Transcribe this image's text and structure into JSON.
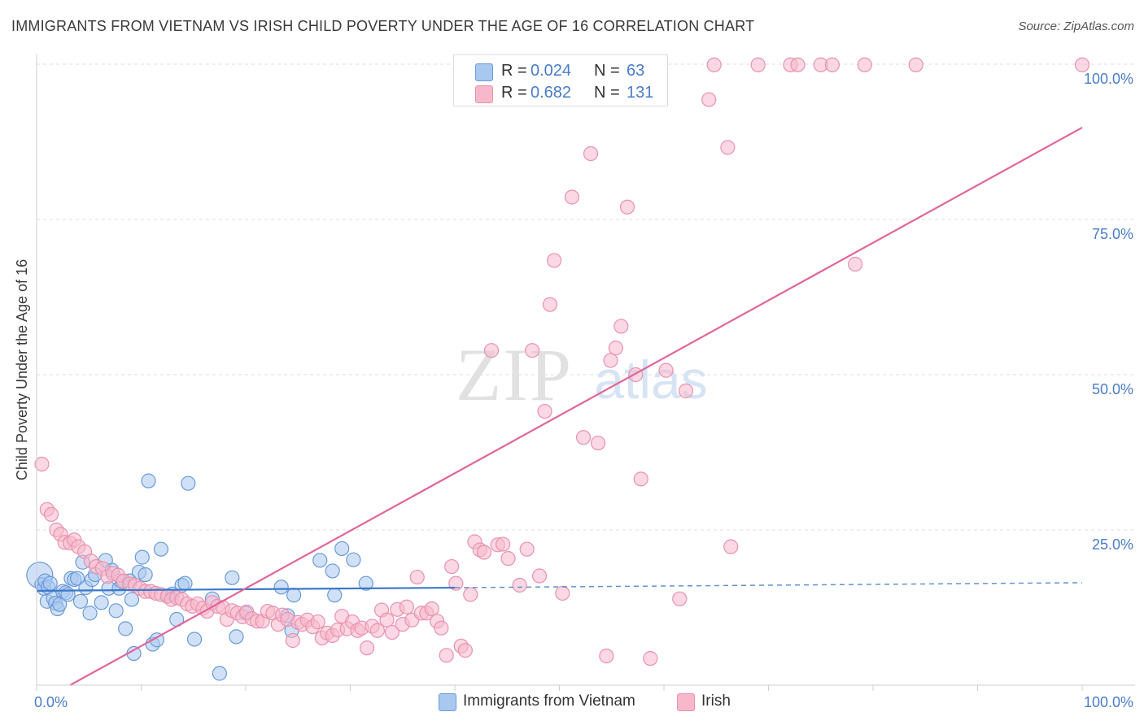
{
  "title": "IMMIGRANTS FROM VIETNAM VS IRISH CHILD POVERTY UNDER THE AGE OF 16 CORRELATION CHART",
  "source": "Source: ZipAtlas.com",
  "watermark": {
    "zip": "ZIP",
    "atlas": "atlas"
  },
  "legend": {
    "rows": [
      {
        "r_label": "R =",
        "r_value": "0.024",
        "n_label": "N =",
        "n_value": "63",
        "color": "#a9c8f0",
        "border": "#6a9ad8"
      },
      {
        "r_label": "R =",
        "r_value": "0.682",
        "n_label": "N =",
        "n_value": "131",
        "color": "#f7b8cc",
        "border": "#e892ad"
      }
    ]
  },
  "bottom_legend": [
    {
      "label": "Immigrants from Vietnam",
      "color": "#a9c8f0",
      "border": "#6a9ad8"
    },
    {
      "label": "Irish",
      "color": "#f7b8cc",
      "border": "#e892ad"
    }
  ],
  "chart_data": {
    "type": "scatter",
    "xlabel": "",
    "ylabel": "Child Poverty Under the Age of 16",
    "xlim": [
      0,
      100
    ],
    "ylim": [
      0,
      100
    ],
    "x_tick_labels": [
      "0.0%",
      "100.0%"
    ],
    "y_tick_labels": [
      "25.0%",
      "50.0%",
      "75.0%",
      "100.0%"
    ],
    "y_ticks": [
      25,
      50,
      75,
      100
    ],
    "grid": true,
    "colors": {
      "blue_fill": "#a9c8f0",
      "blue_stroke": "#6a9ad8",
      "blue_line": "#3a78c9",
      "pink_fill": "#f7b8cc",
      "pink_stroke": "#e892ad",
      "pink_line": "#e0669a"
    },
    "series": [
      {
        "name": "Immigrants from Vietnam",
        "points": [
          [
            0.3,
            17.7
          ],
          [
            0.5,
            16.2
          ],
          [
            0.7,
            15.6
          ],
          [
            0.8,
            16.8
          ],
          [
            1.0,
            13.5
          ],
          [
            1.1,
            15.8
          ],
          [
            1.3,
            16.4
          ],
          [
            1.6,
            14.0
          ],
          [
            1.8,
            13.2
          ],
          [
            2.0,
            12.3
          ],
          [
            2.2,
            13.0
          ],
          [
            2.5,
            15.1
          ],
          [
            2.8,
            14.9
          ],
          [
            3.0,
            14.6
          ],
          [
            3.3,
            17.2
          ],
          [
            3.6,
            17.0
          ],
          [
            3.9,
            17.2
          ],
          [
            4.2,
            13.5
          ],
          [
            4.4,
            19.8
          ],
          [
            4.7,
            15.7
          ],
          [
            5.1,
            11.6
          ],
          [
            5.3,
            17.0
          ],
          [
            5.6,
            17.8
          ],
          [
            6.2,
            13.3
          ],
          [
            6.6,
            20.1
          ],
          [
            6.9,
            15.6
          ],
          [
            7.2,
            18.5
          ],
          [
            7.6,
            12.0
          ],
          [
            7.9,
            15.6
          ],
          [
            8.2,
            16.6
          ],
          [
            8.5,
            9.1
          ],
          [
            8.9,
            16.8
          ],
          [
            9.1,
            13.8
          ],
          [
            9.3,
            5.1
          ],
          [
            9.8,
            18.2
          ],
          [
            10.1,
            20.6
          ],
          [
            10.4,
            17.8
          ],
          [
            10.7,
            32.9
          ],
          [
            11.1,
            6.6
          ],
          [
            11.5,
            7.3
          ],
          [
            11.9,
            21.9
          ],
          [
            12.6,
            14.4
          ],
          [
            13.0,
            14.7
          ],
          [
            13.4,
            10.6
          ],
          [
            13.9,
            16.1
          ],
          [
            14.2,
            16.4
          ],
          [
            14.5,
            32.5
          ],
          [
            15.1,
            7.4
          ],
          [
            16.8,
            13.9
          ],
          [
            17.5,
            1.9
          ],
          [
            18.7,
            17.3
          ],
          [
            19.1,
            7.8
          ],
          [
            20.0,
            11.6
          ],
          [
            23.4,
            15.8
          ],
          [
            24.0,
            11.2
          ],
          [
            24.4,
            8.8
          ],
          [
            24.6,
            14.5
          ],
          [
            27.1,
            20.1
          ],
          [
            28.3,
            18.4
          ],
          [
            28.5,
            14.5
          ],
          [
            29.2,
            22.0
          ],
          [
            30.3,
            20.2
          ],
          [
            31.5,
            16.4
          ]
        ]
      },
      {
        "name": "Irish",
        "points": [
          [
            0.5,
            35.6
          ],
          [
            1.0,
            28.3
          ],
          [
            1.4,
            27.5
          ],
          [
            1.9,
            25.0
          ],
          [
            2.3,
            24.3
          ],
          [
            2.7,
            23.0
          ],
          [
            3.2,
            22.9
          ],
          [
            3.6,
            23.4
          ],
          [
            4.0,
            22.3
          ],
          [
            4.6,
            21.5
          ],
          [
            5.2,
            20.0
          ],
          [
            5.7,
            19.1
          ],
          [
            6.3,
            18.8
          ],
          [
            6.8,
            17.5
          ],
          [
            7.3,
            18.0
          ],
          [
            7.8,
            17.7
          ],
          [
            8.3,
            16.8
          ],
          [
            8.9,
            16.3
          ],
          [
            9.4,
            16.1
          ],
          [
            9.9,
            15.6
          ],
          [
            10.4,
            15.1
          ],
          [
            10.9,
            15.1
          ],
          [
            11.4,
            14.8
          ],
          [
            11.9,
            14.6
          ],
          [
            12.5,
            14.3
          ],
          [
            12.9,
            13.8
          ],
          [
            13.4,
            14.1
          ],
          [
            13.9,
            13.8
          ],
          [
            14.4,
            13.1
          ],
          [
            14.9,
            12.7
          ],
          [
            15.4,
            13.1
          ],
          [
            15.9,
            12.4
          ],
          [
            16.3,
            11.9
          ],
          [
            16.8,
            13.3
          ],
          [
            17.3,
            12.7
          ],
          [
            17.8,
            12.5
          ],
          [
            18.2,
            10.6
          ],
          [
            18.7,
            12.0
          ],
          [
            19.2,
            11.6
          ],
          [
            19.7,
            11.0
          ],
          [
            20.1,
            11.8
          ],
          [
            20.6,
            10.7
          ],
          [
            21.1,
            10.3
          ],
          [
            21.6,
            10.3
          ],
          [
            22.1,
            11.9
          ],
          [
            22.6,
            11.6
          ],
          [
            23.1,
            9.8
          ],
          [
            23.5,
            11.3
          ],
          [
            24.0,
            10.6
          ],
          [
            24.5,
            7.2
          ],
          [
            25.0,
            10.1
          ],
          [
            25.4,
            9.8
          ],
          [
            25.9,
            10.5
          ],
          [
            26.4,
            9.4
          ],
          [
            26.9,
            10.2
          ],
          [
            27.3,
            7.6
          ],
          [
            27.8,
            8.4
          ],
          [
            28.3,
            8.0
          ],
          [
            28.8,
            8.9
          ],
          [
            29.2,
            11.1
          ],
          [
            29.7,
            9.1
          ],
          [
            30.2,
            10.2
          ],
          [
            30.7,
            8.8
          ],
          [
            31.1,
            9.2
          ],
          [
            31.6,
            6.0
          ],
          [
            32.1,
            9.5
          ],
          [
            32.6,
            8.8
          ],
          [
            33.0,
            12.1
          ],
          [
            33.5,
            10.5
          ],
          [
            34.0,
            8.5
          ],
          [
            34.5,
            12.2
          ],
          [
            35.0,
            9.8
          ],
          [
            35.4,
            12.6
          ],
          [
            35.9,
            10.5
          ],
          [
            36.4,
            17.4
          ],
          [
            36.8,
            11.6
          ],
          [
            37.3,
            11.6
          ],
          [
            37.8,
            12.3
          ],
          [
            38.3,
            10.3
          ],
          [
            38.7,
            9.2
          ],
          [
            39.2,
            4.8
          ],
          [
            39.7,
            19.1
          ],
          [
            40.1,
            16.4
          ],
          [
            40.6,
            6.3
          ],
          [
            41.0,
            5.6
          ],
          [
            41.5,
            14.6
          ],
          [
            41.9,
            23.1
          ],
          [
            42.4,
            21.8
          ],
          [
            42.8,
            21.4
          ],
          [
            43.5,
            53.9
          ],
          [
            44.1,
            22.6
          ],
          [
            44.6,
            22.7
          ],
          [
            45.1,
            20.4
          ],
          [
            46.2,
            16.1
          ],
          [
            46.9,
            21.9
          ],
          [
            47.4,
            53.9
          ],
          [
            48.1,
            17.6
          ],
          [
            48.6,
            44.1
          ],
          [
            49.1,
            61.3
          ],
          [
            49.5,
            68.4
          ],
          [
            50.3,
            14.8
          ],
          [
            51.2,
            78.6
          ],
          [
            52.3,
            39.9
          ],
          [
            53.0,
            85.6
          ],
          [
            53.7,
            39.0
          ],
          [
            54.5,
            4.7
          ],
          [
            54.9,
            52.3
          ],
          [
            55.4,
            54.3
          ],
          [
            55.9,
            57.8
          ],
          [
            56.5,
            77.0
          ],
          [
            57.3,
            50.0
          ],
          [
            57.8,
            33.2
          ],
          [
            58.7,
            4.3
          ],
          [
            59.1,
            99.8
          ],
          [
            59.6,
            99.9
          ],
          [
            60.2,
            50.7
          ],
          [
            61.5,
            13.9
          ],
          [
            62.1,
            47.4
          ],
          [
            64.3,
            94.3
          ],
          [
            64.8,
            99.9
          ],
          [
            66.1,
            86.6
          ],
          [
            66.4,
            22.3
          ],
          [
            69.0,
            99.9
          ],
          [
            72.1,
            99.9
          ],
          [
            72.8,
            99.9
          ],
          [
            75.0,
            99.9
          ],
          [
            76.1,
            99.9
          ],
          [
            78.3,
            67.8
          ],
          [
            79.2,
            99.9
          ],
          [
            84.1,
            99.9
          ],
          [
            100.0,
            99.9
          ]
        ]
      }
    ],
    "trend_lines": [
      {
        "series": "Immigrants from Vietnam",
        "solid": [
          [
            0,
            15.2
          ],
          [
            40,
            15.7
          ]
        ],
        "dashed": [
          [
            40,
            15.7
          ],
          [
            100,
            16.5
          ]
        ]
      },
      {
        "series": "Irish",
        "solid": [
          [
            3.2,
            0
          ],
          [
            100,
            89.8
          ]
        ]
      }
    ]
  }
}
